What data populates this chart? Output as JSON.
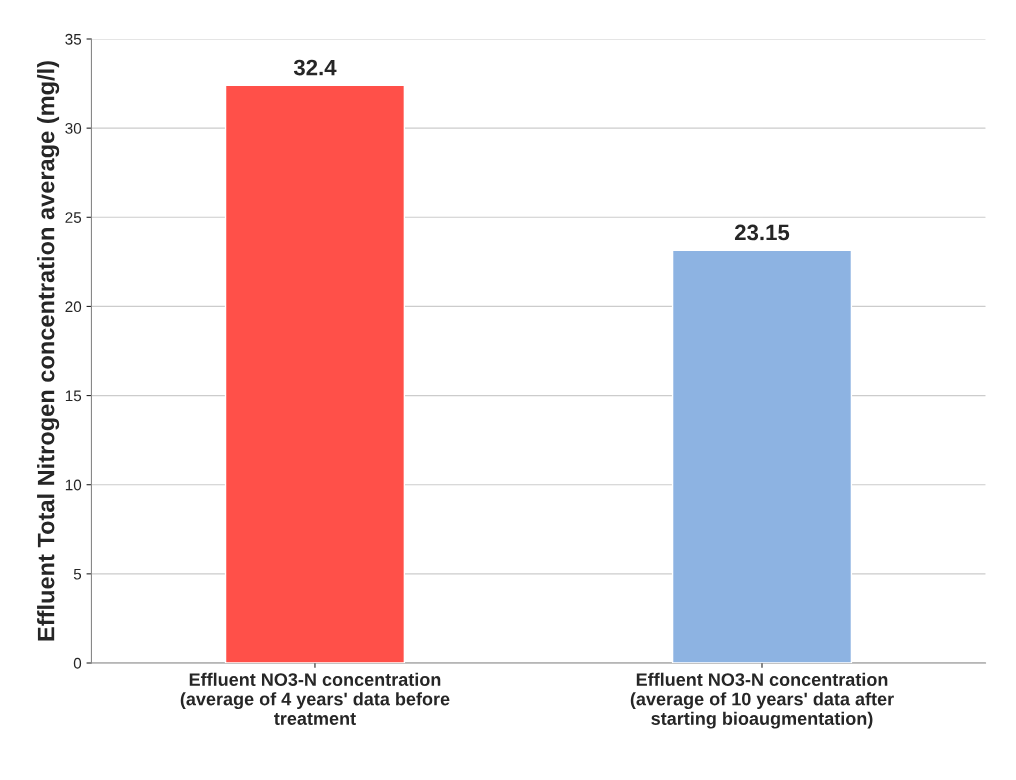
{
  "chart_data": {
    "type": "bar",
    "ylabel": "Effluent Total Nitrogen concentration average (mg/l)",
    "categories": [
      "Effluent NO3-N concentration\n(average of 4 years' data before\ntreatment",
      "Effluent NO3-N concentration\n(average of 10 years' data after\nstarting bioaugmentation)"
    ],
    "values": [
      32.4,
      23.15
    ],
    "colors": [
      "#ff5049",
      "#8db3e2"
    ],
    "ylim": [
      0,
      35
    ],
    "yticks": [
      0,
      5,
      10,
      15,
      20,
      25,
      30,
      35
    ],
    "grid": "y",
    "data_labels": true
  }
}
